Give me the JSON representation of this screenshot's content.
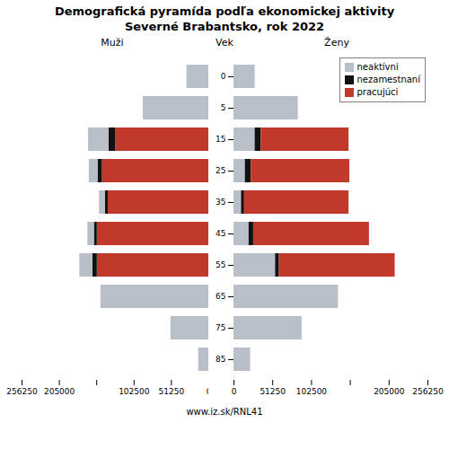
{
  "chart_data": {
    "type": "bar",
    "orientation": "horizontal",
    "stacked": true,
    "title": "Demografická pyramída podľa ekonomickej aktivity",
    "subtitle": "Severné Brabantsko, rok 2022",
    "ylabel": "Vek",
    "caption": "www.iz.sk/RNL41",
    "legend": "upper right",
    "categories": [
      85,
      75,
      65,
      55,
      45,
      35,
      25,
      15,
      5,
      0
    ],
    "xlim": [
      0,
      256250
    ],
    "xticks": [
      0,
      51250,
      102500,
      {
        "value": 153750,
        "label": null
      },
      205000,
      256250
    ],
    "panels": [
      {
        "xlabel": "Muži",
        "series": [
          {
            "name": "pracujúci",
            "color": "#c0392b",
            "values": [
              0,
              0,
              0,
              153000,
              153000,
              138000,
              146000,
              128000,
              0,
              0
            ]
          },
          {
            "name": "nezamestnaní",
            "color": "#111111",
            "values": [
              0,
              0,
              0,
              6000,
              4000,
              4000,
              6000,
              9000,
              0,
              0
            ]
          },
          {
            "name": "neaktívni",
            "color": "#b8bfc8",
            "values": [
              14000,
              52000,
              148000,
              18000,
              9000,
              8000,
              12000,
              28000,
              90000,
              30000
            ]
          }
        ]
      },
      {
        "xlabel": "Ženy",
        "series": [
          {
            "name": "neaktívni",
            "color": "#b8bfc8",
            "values": [
              22000,
              90000,
              138000,
              55000,
              20000,
              10000,
              15000,
              28000,
              85000,
              28000
            ]
          },
          {
            "name": "nezamestnaní",
            "color": "#111111",
            "values": [
              0,
              0,
              0,
              5000,
              6000,
              4000,
              8000,
              8000,
              0,
              0
            ]
          },
          {
            "name": "pracujúci",
            "color": "#c0392b",
            "values": [
              0,
              0,
              0,
              153000,
              153000,
              138000,
              130000,
              116000,
              0,
              0
            ]
          }
        ]
      }
    ]
  }
}
